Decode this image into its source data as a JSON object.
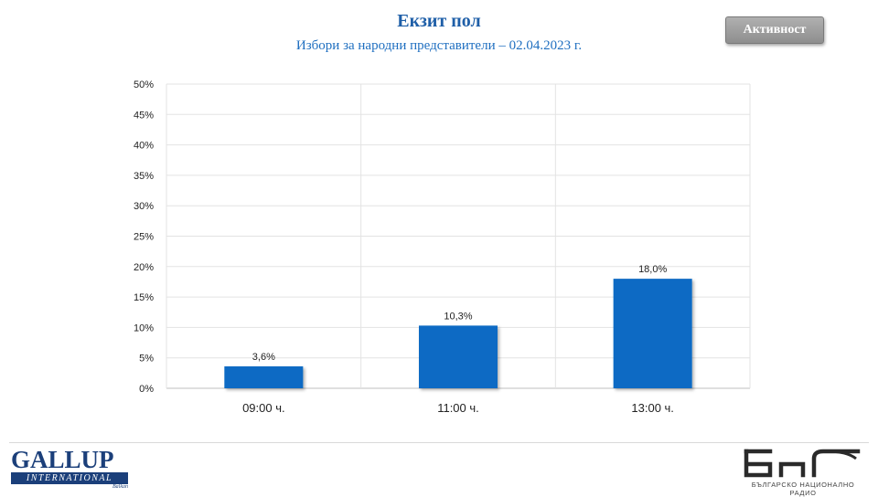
{
  "header": {
    "title": "Екзит пол",
    "subtitle": "Избори за народни представители – 02.04.2023 г.",
    "activity_button": "Активност"
  },
  "chart_data": {
    "type": "bar",
    "categories": [
      "09:00 ч.",
      "11:00 ч.",
      "13:00 ч."
    ],
    "values": [
      3.6,
      10.3,
      18.0
    ],
    "data_labels": [
      "3,6%",
      "10,3%",
      "18,0%"
    ],
    "ylim": [
      0,
      50
    ],
    "y_ticks": [
      "0%",
      "5%",
      "10%",
      "15%",
      "20%",
      "25%",
      "30%",
      "35%",
      "40%",
      "45%",
      "50%"
    ],
    "grid": true,
    "bar_color": "#0a6ac4"
  },
  "footer": {
    "gallup_name": "GALLUP",
    "gallup_band": "INTERNATIONAL",
    "gallup_sub": "Balkan",
    "bnr_caption": "БЪЛГАРСКО НАЦИОНАЛНО РАДИО"
  },
  "icons": {
    "gallup": "gallup-logo",
    "bnr": "bnr-logo"
  }
}
